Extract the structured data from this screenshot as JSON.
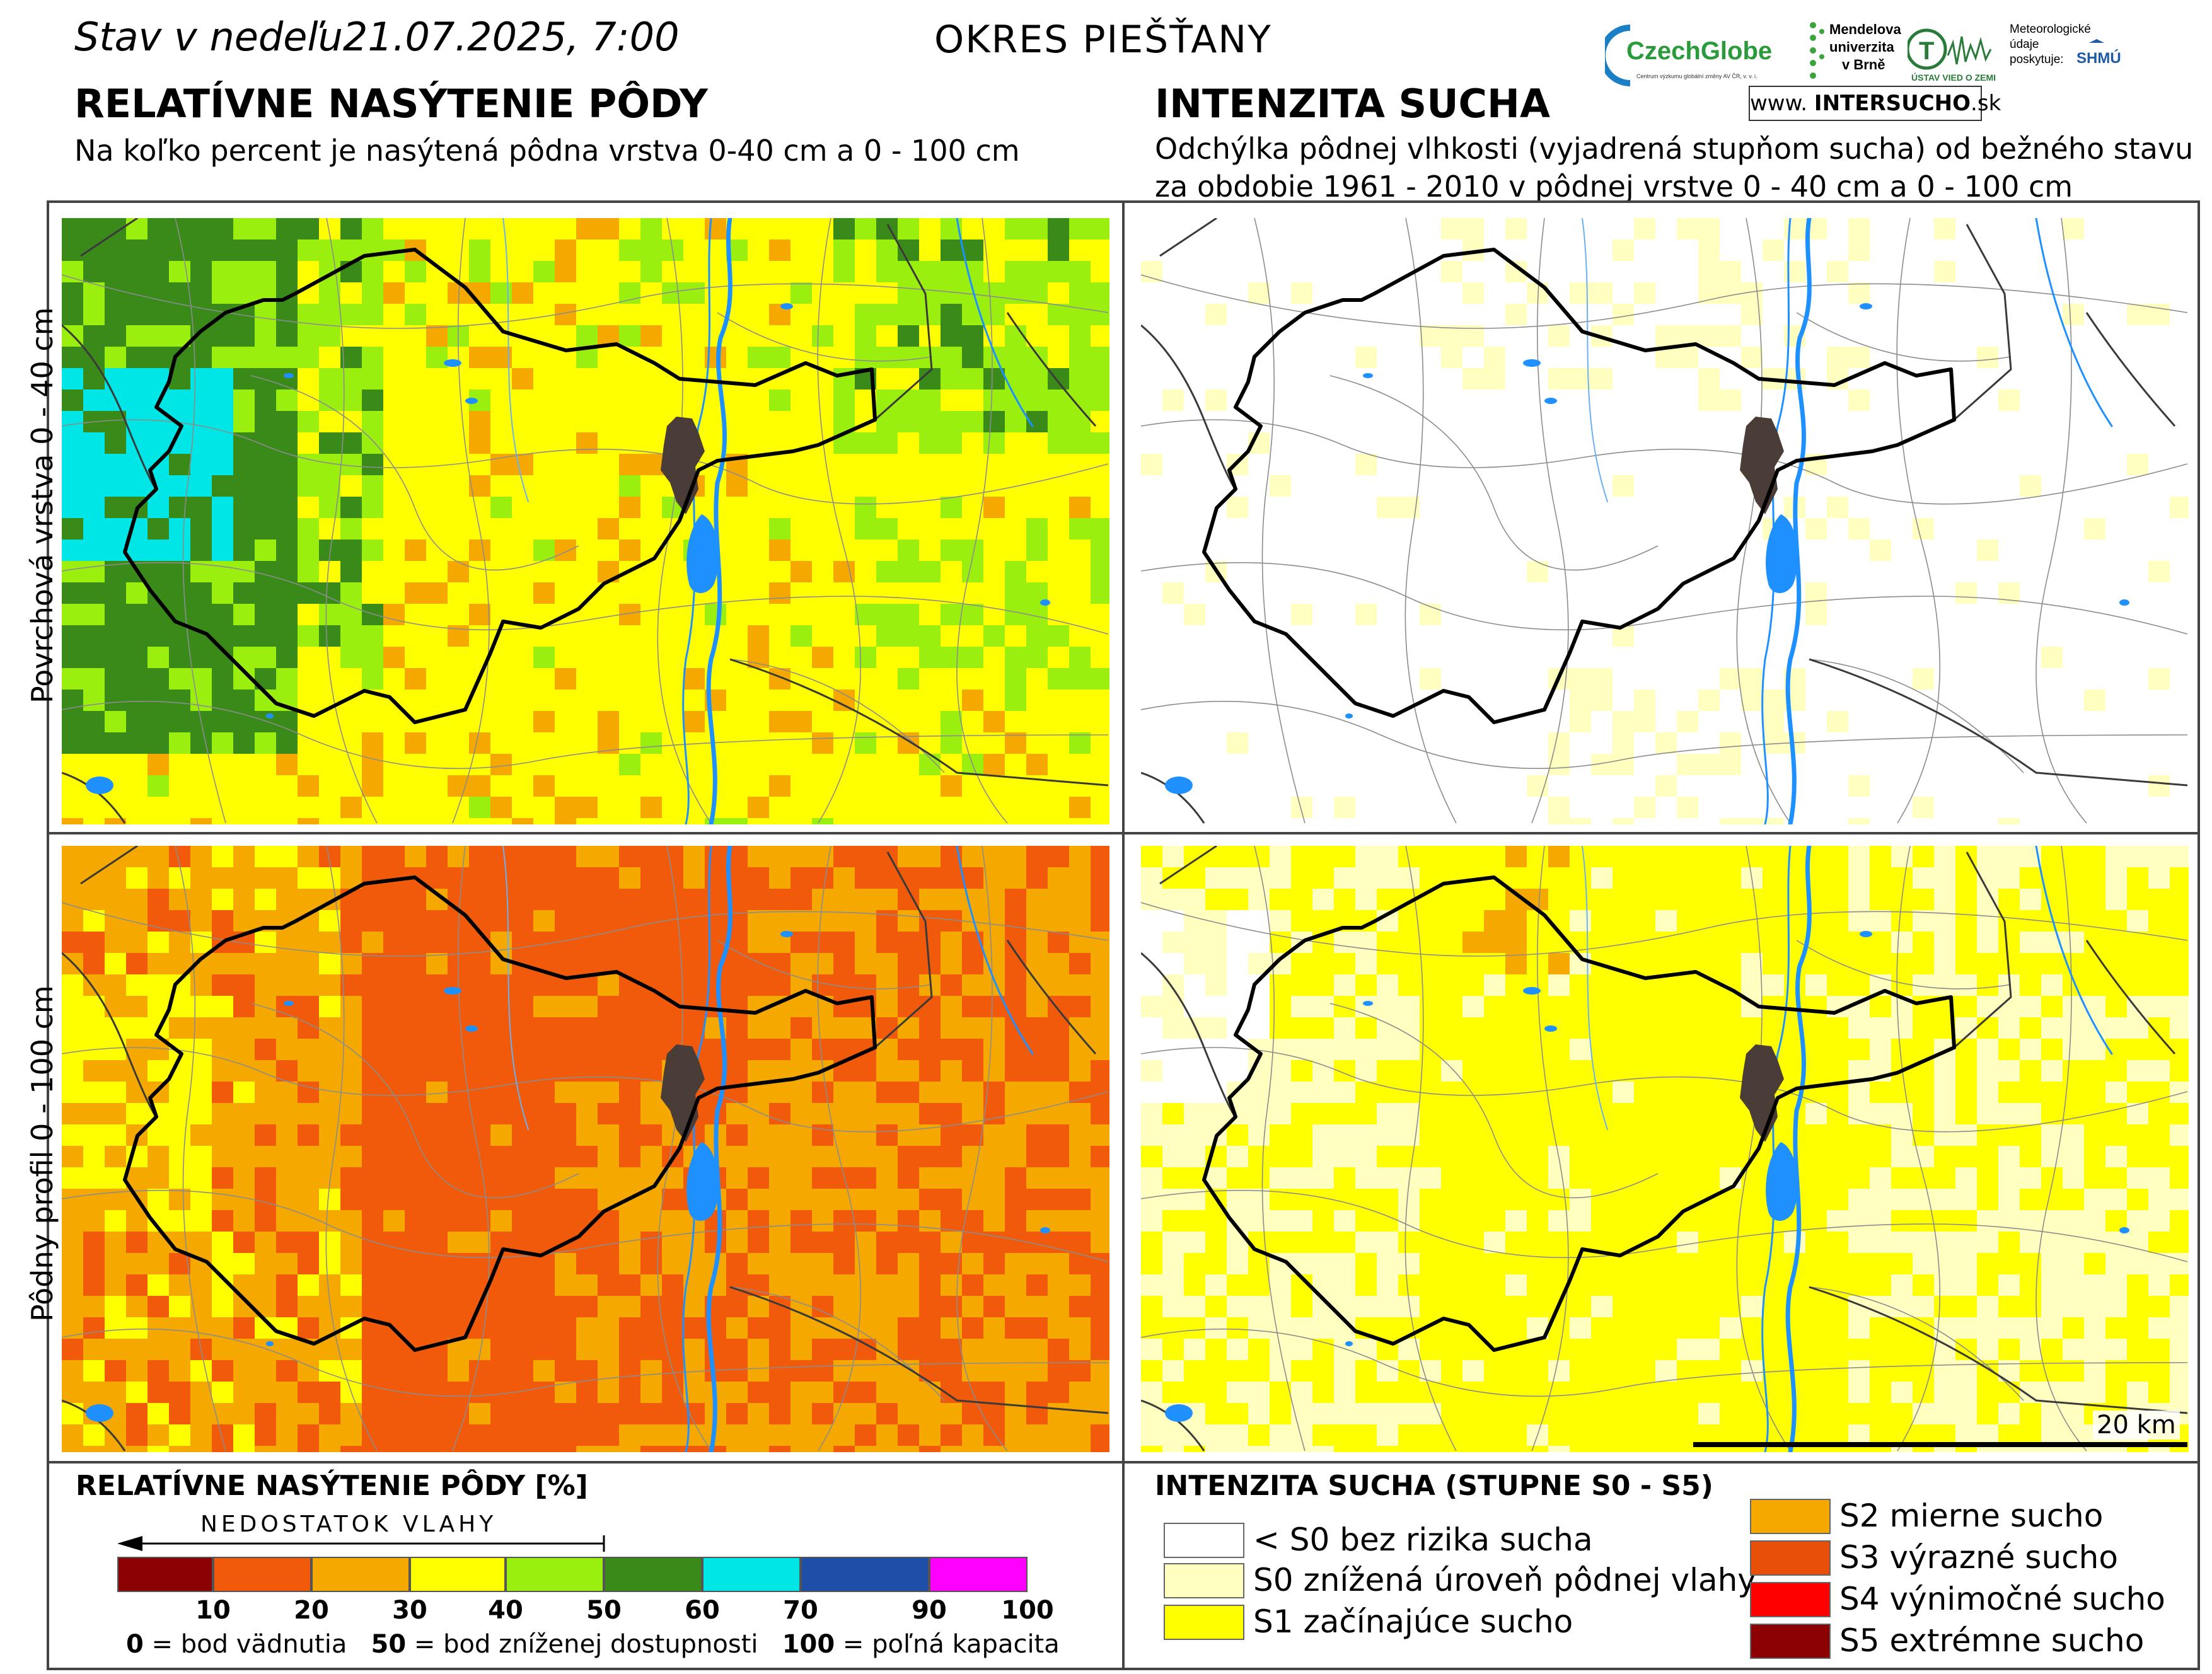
{
  "header": {
    "stav_prefix": "Stav v nedeľu",
    "date_time": "21.07.2025, 7:00",
    "okres": "OKRES  PIEŠŤANY",
    "left_title": "RELATÍVNE NASÝTENIE PÔDY",
    "left_subtitle": "Na koľko percent je nasýtená pôdna vrstva 0-40 cm a 0 - 100 cm",
    "right_title": "INTENZITA SUCHA",
    "right_subtitle_line1": "Odchýlka pôdnej vlhkosti (vyjadrená stupňom sucha) od bežného stavu",
    "right_subtitle_line2": "za obdobie 1961 - 2010 v pôdnej vrstve 0 - 40 cm a 0 - 100 cm"
  },
  "logos": {
    "czechglobe": "CzechGlobe",
    "czechglobe_sub": "Centrum výzkumu globální změny AV ČR, v. v. i.",
    "mendel_1": "Mendelova",
    "mendel_2": "univerzita",
    "mendel_3": "v Brně",
    "uvgz": "ÚSTAV VIED O ZEMI",
    "meteo_1": "Meteorologické",
    "meteo_2": "údaje",
    "meteo_3": "poskytuje:",
    "shmu": "SHMÚ",
    "www_prefix": "www.",
    "www_main": "INTERSUCHO",
    "www_suffix": ".sk"
  },
  "row_labels": {
    "top": "Povrchová vrstva 0 - 40 cm",
    "bottom": "Pôdny profil 0 - 100 cm"
  },
  "scale_label": "20 km",
  "legend_left": {
    "title": "RELATÍVNE NASÝTENIE PÔDY [%]",
    "arrow_label": "NEDOSTATOK VLAHY",
    "colors": [
      "#8b0000",
      "#f05a0a",
      "#f5a800",
      "#ffff00",
      "#9bef0f",
      "#3a8a1a",
      "#00e5e5",
      "#1e4fa8",
      "#ff00ff"
    ],
    "ticks": [
      "10",
      "20",
      "30",
      "40",
      "50",
      "60",
      "70",
      "90",
      "100"
    ],
    "def_0_num": "0",
    "def_0_text": " = bod vädnutia",
    "def_50_num": "50",
    "def_50_text": " = bod zníženej dostupnosti",
    "def_100_num": "100",
    "def_100_text": " = poľná kapacita"
  },
  "legend_right": {
    "title": "INTENZITA SUCHA (STUPNE S0 - S5)",
    "items": [
      {
        "label": "< S0 bez rizika sucha",
        "color": "#ffffff"
      },
      {
        "label": "S0 znížená úroveň pôdnej vlahy",
        "color": "#ffffc0"
      },
      {
        "label": "S1 začínajúce sucho",
        "color": "#ffff00"
      },
      {
        "label": "S2 mierne sucho",
        "color": "#f5a800"
      },
      {
        "label": "S3 výrazné sucho",
        "color": "#e8500a"
      },
      {
        "label": "S4 výnimočné sucho",
        "color": "#ff0000"
      },
      {
        "label": "S5 extrémne sucho",
        "color": "#8b0000"
      }
    ]
  },
  "map_colors": {
    "city": "#4a3c36",
    "water": "#1e90ff",
    "boundary": "#000000"
  }
}
